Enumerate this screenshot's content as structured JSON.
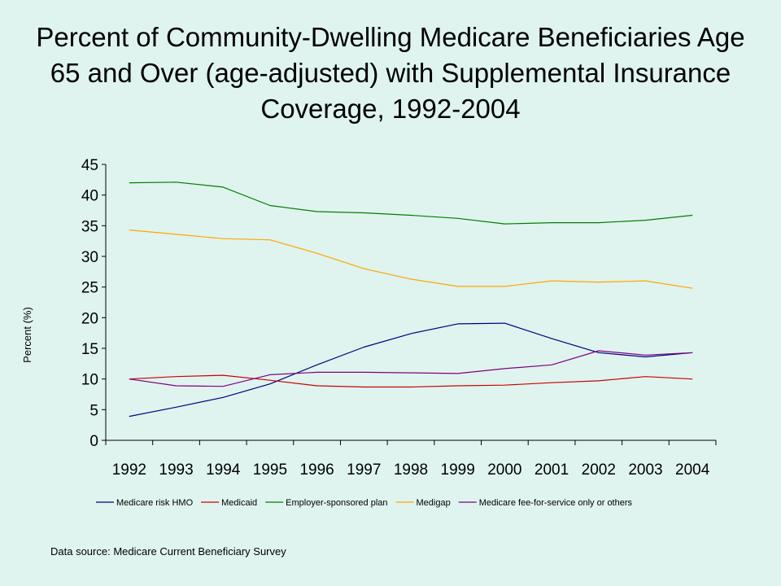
{
  "title": "Percent of Community-Dwelling Medicare Beneficiaries Age 65 and Over (age-adjusted) with Supplemental Insurance Coverage, 1992-2004",
  "source": "Data source: Medicare Current Beneficiary Survey",
  "chart_data": {
    "type": "line",
    "title": "Percent of Community-Dwelling Medicare Beneficiaries Age 65 and Over (age-adjusted) with Supplemental Insurance Coverage, 1992-2004",
    "xlabel": "",
    "ylabel": "Percent (%)",
    "ylim": [
      0,
      45
    ],
    "yticks": [
      0,
      5,
      10,
      15,
      20,
      25,
      30,
      35,
      40,
      45
    ],
    "categories": [
      "1992",
      "1993",
      "1994",
      "1995",
      "1996",
      "1997",
      "1998",
      "1999",
      "2000",
      "2001",
      "2002",
      "2003",
      "2004"
    ],
    "grid": false,
    "legend_position": "bottom",
    "series": [
      {
        "name": "Medicare risk HMO",
        "color": "#000080",
        "values": [
          3.9,
          5.4,
          7.0,
          9.2,
          12.3,
          15.2,
          17.4,
          19.0,
          19.1,
          16.6,
          14.3,
          13.6,
          14.3
        ]
      },
      {
        "name": "Medicaid",
        "color": "#cc0000",
        "values": [
          10.0,
          10.4,
          10.6,
          9.8,
          8.9,
          8.7,
          8.7,
          8.9,
          9.0,
          9.4,
          9.7,
          10.4,
          10.0
        ]
      },
      {
        "name": "Employer-sponsored plan",
        "color": "#008000",
        "values": [
          42.0,
          42.1,
          41.3,
          38.3,
          37.3,
          37.1,
          36.7,
          36.2,
          35.3,
          35.5,
          35.5,
          35.9,
          36.7
        ]
      },
      {
        "name": "Medigap",
        "color": "#ffa500",
        "values": [
          34.3,
          33.6,
          32.9,
          32.7,
          30.5,
          28.0,
          26.3,
          25.1,
          25.1,
          26.0,
          25.8,
          26.0,
          24.8
        ]
      },
      {
        "name": "Medicare fee-for-service only or others",
        "color": "#800080",
        "values": [
          10.0,
          8.9,
          8.8,
          10.7,
          11.1,
          11.1,
          11.0,
          10.9,
          11.7,
          12.3,
          14.6,
          13.9,
          14.3
        ]
      }
    ]
  }
}
